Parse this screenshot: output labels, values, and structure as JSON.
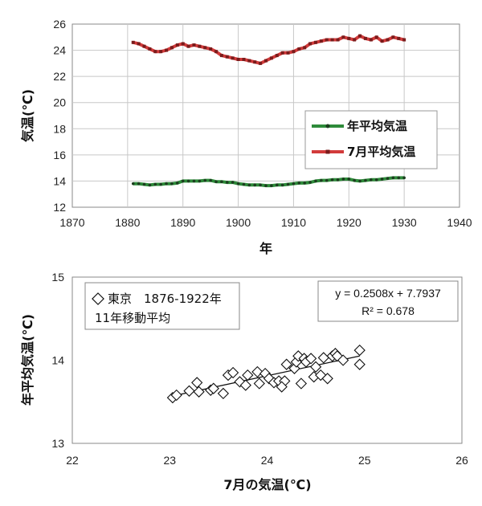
{
  "colors": {
    "annual": "#2e8b3a",
    "annual_marker": "#1c3d1f",
    "july": "#d23b3b",
    "july_marker": "#7a1c1c",
    "grid": "#c8c8c8"
  },
  "chart_data": [
    {
      "type": "line",
      "xlabel": "年",
      "ylabel": "気温(℃)",
      "xlim": [
        1870,
        1940
      ],
      "ylim": [
        12,
        26
      ],
      "x_ticks": [
        "1870",
        "1880",
        "1890",
        "1900",
        "1910",
        "1920",
        "1930",
        "1940"
      ],
      "y_ticks": [
        "12",
        "14",
        "16",
        "18",
        "20",
        "22",
        "24",
        "26"
      ],
      "grid": true,
      "legend_position": "right-middle",
      "series": [
        {
          "name": "年平均気温",
          "color": "#2e8b3a",
          "x": [
            1881,
            1882,
            1883,
            1884,
            1885,
            1886,
            1887,
            1888,
            1889,
            1890,
            1891,
            1892,
            1893,
            1894,
            1895,
            1896,
            1897,
            1898,
            1899,
            1900,
            1901,
            1902,
            1903,
            1904,
            1905,
            1906,
            1907,
            1908,
            1909,
            1910,
            1911,
            1912,
            1913,
            1914,
            1915,
            1916,
            1917,
            1918,
            1919,
            1920,
            1921,
            1922,
            1923,
            1924,
            1925,
            1926,
            1927,
            1928,
            1929,
            1930
          ],
          "values": [
            13.8,
            13.8,
            13.75,
            13.7,
            13.75,
            13.75,
            13.8,
            13.8,
            13.85,
            14.0,
            14.0,
            14.0,
            14.0,
            14.05,
            14.05,
            13.95,
            13.95,
            13.9,
            13.9,
            13.8,
            13.75,
            13.7,
            13.7,
            13.7,
            13.65,
            13.65,
            13.7,
            13.7,
            13.75,
            13.8,
            13.85,
            13.85,
            13.9,
            14.0,
            14.05,
            14.05,
            14.1,
            14.1,
            14.15,
            14.15,
            14.05,
            14.0,
            14.05,
            14.1,
            14.1,
            14.15,
            14.2,
            14.25,
            14.25,
            14.25
          ]
        },
        {
          "name": "7月平均気温",
          "color": "#d23b3b",
          "x": [
            1881,
            1882,
            1883,
            1884,
            1885,
            1886,
            1887,
            1888,
            1889,
            1890,
            1891,
            1892,
            1893,
            1894,
            1895,
            1896,
            1897,
            1898,
            1899,
            1900,
            1901,
            1902,
            1903,
            1904,
            1905,
            1906,
            1907,
            1908,
            1909,
            1910,
            1911,
            1912,
            1913,
            1914,
            1915,
            1916,
            1917,
            1918,
            1919,
            1920,
            1921,
            1922,
            1923,
            1924,
            1925,
            1926,
            1927,
            1928,
            1929,
            1930
          ],
          "values": [
            24.6,
            24.5,
            24.3,
            24.1,
            23.9,
            23.9,
            24.0,
            24.2,
            24.4,
            24.5,
            24.3,
            24.4,
            24.3,
            24.2,
            24.1,
            23.9,
            23.6,
            23.5,
            23.4,
            23.3,
            23.3,
            23.2,
            23.1,
            23.0,
            23.2,
            23.4,
            23.6,
            23.8,
            23.8,
            23.9,
            24.1,
            24.2,
            24.5,
            24.6,
            24.7,
            24.8,
            24.8,
            24.8,
            25.0,
            24.9,
            24.8,
            25.1,
            24.9,
            24.8,
            25.0,
            24.7,
            24.8,
            25.0,
            24.9,
            24.8
          ]
        }
      ]
    },
    {
      "type": "scatter",
      "xlabel": "7月の気温(℃)",
      "ylabel": "年平均気温(℃)",
      "xlim": [
        22,
        26
      ],
      "ylim": [
        13,
        15
      ],
      "x_ticks": [
        "22",
        "23",
        "24",
        "25",
        "26"
      ],
      "y_ticks": [
        "13",
        "14",
        "15"
      ],
      "grid": false,
      "legend_line1": "東京　1876-1922年",
      "legend_line2": "11年移動平均",
      "equation": "y = 0.2508x + 7.7937",
      "r_squared": "R² = 0.678",
      "trendline": {
        "slope": 0.2508,
        "intercept": 7.7937,
        "x_range": [
          23.05,
          24.95
        ]
      },
      "series": [
        {
          "name": "東京　1876-1922年",
          "points": [
            [
              23.03,
              13.55
            ],
            [
              23.07,
              13.58
            ],
            [
              23.2,
              13.63
            ],
            [
              23.28,
              13.73
            ],
            [
              23.3,
              13.62
            ],
            [
              23.42,
              13.64
            ],
            [
              23.45,
              13.66
            ],
            [
              23.55,
              13.6
            ],
            [
              23.6,
              13.82
            ],
            [
              23.65,
              13.85
            ],
            [
              23.72,
              13.74
            ],
            [
              23.78,
              13.7
            ],
            [
              23.8,
              13.82
            ],
            [
              23.9,
              13.86
            ],
            [
              23.92,
              13.72
            ],
            [
              23.98,
              13.84
            ],
            [
              24.02,
              13.78
            ],
            [
              24.07,
              13.73
            ],
            [
              24.12,
              13.75
            ],
            [
              24.18,
              13.75
            ],
            [
              24.15,
              13.68
            ],
            [
              24.2,
              13.95
            ],
            [
              24.28,
              13.9
            ],
            [
              24.3,
              13.98
            ],
            [
              24.32,
              14.05
            ],
            [
              24.38,
              14.02
            ],
            [
              24.35,
              13.72
            ],
            [
              24.4,
              13.98
            ],
            [
              24.45,
              14.02
            ],
            [
              24.5,
              13.92
            ],
            [
              24.48,
              13.8
            ],
            [
              24.55,
              13.82
            ],
            [
              24.58,
              14.03
            ],
            [
              24.62,
              13.78
            ],
            [
              24.67,
              14.05
            ],
            [
              24.7,
              14.08
            ],
            [
              24.72,
              14.05
            ],
            [
              24.78,
              14.0
            ],
            [
              24.95,
              14.12
            ],
            [
              24.95,
              13.95
            ]
          ]
        }
      ]
    }
  ]
}
